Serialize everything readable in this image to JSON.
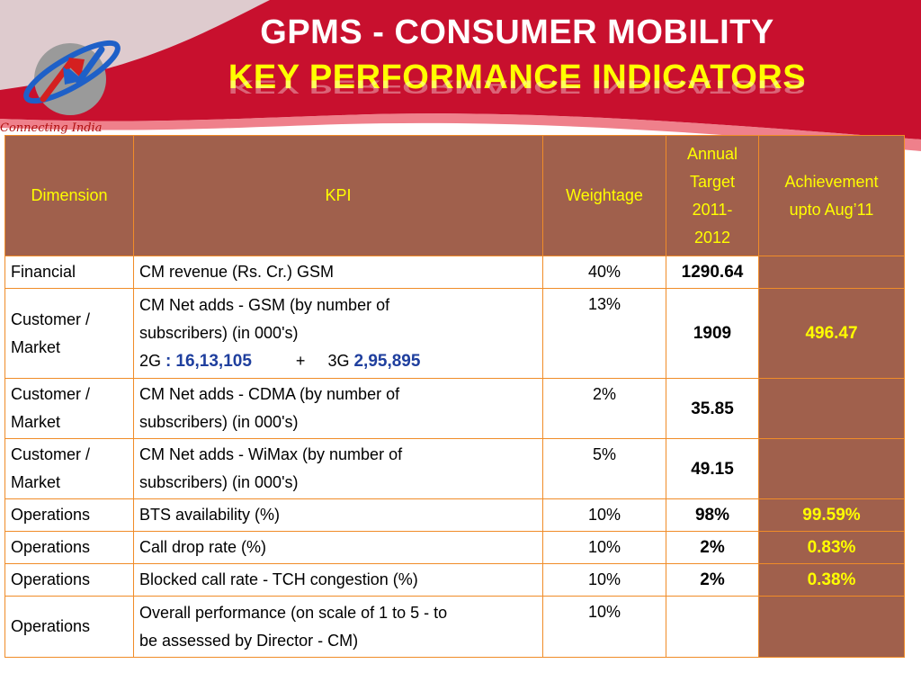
{
  "header": {
    "title_line1": "GPMS  - CONSUMER MOBILITY",
    "title_line2": "KEY PERFORMANCE INDICATORS",
    "tagline": "Connecting India"
  },
  "colors": {
    "header_red": "#c8102e",
    "table_header_bg": "#a0604c",
    "table_header_text": "#ffff00",
    "border": "#f08c28",
    "highlight_blue": "#1f3f9e"
  },
  "table": {
    "headers": {
      "dimension": "Dimension",
      "kpi": "KPI",
      "weightage": "Weightage",
      "annual_target_l1": "Annual",
      "annual_target_l2": "Target",
      "annual_target_l3": "2011-",
      "annual_target_l4": "2012",
      "achievement_l1": "Achievement",
      "achievement_l2": "upto  Aug’11"
    },
    "rows": [
      {
        "dimension": "Financial",
        "kpi_l1": "CM revenue (Rs. Cr.) GSM",
        "weightage": "40%",
        "target": "1290.64",
        "achievement": ""
      },
      {
        "dimension_l1": "Customer /",
        "dimension_l2": "Market",
        "kpi_l1": "CM Net adds - GSM (by number of",
        "kpi_l2": "subscribers) (in 000's)",
        "kpi_2g_label": "2G",
        "kpi_2g_sep": ":",
        "kpi_2g_value": "16,13,105",
        "kpi_plus": "+",
        "kpi_3g_label": "3G",
        "kpi_3g_value": "2,95,895",
        "weightage": "13%",
        "target": "1909",
        "achievement": "496.47"
      },
      {
        "dimension_l1": "Customer /",
        "dimension_l2": "Market",
        "kpi_l1": "CM Net adds - CDMA (by number of",
        "kpi_l2": "subscribers) (in 000's)",
        "weightage": "2%",
        "target": "35.85",
        "achievement": ""
      },
      {
        "dimension_l1": "Customer /",
        "dimension_l2": "Market",
        "kpi_l1": "CM Net adds - WiMax (by number of",
        "kpi_l2": "subscribers) (in 000's)",
        "weightage": "5%",
        "target": "49.15",
        "achievement": ""
      },
      {
        "dimension": "Operations",
        "kpi_l1": "BTS availability (%)",
        "weightage": "10%",
        "target": "98%",
        "achievement": "99.59%"
      },
      {
        "dimension": "Operations",
        "kpi_l1": "Call drop rate (%)",
        "weightage": "10%",
        "target": "2%",
        "achievement": "0.83%"
      },
      {
        "dimension": "Operations",
        "kpi_l1": "Blocked call rate - TCH congestion (%)",
        "weightage": "10%",
        "target": "2%",
        "achievement": "0.38%"
      },
      {
        "dimension": "Operations",
        "kpi_l1": "Overall performance  (on scale of 1 to 5 - to",
        "kpi_l2": "be assessed by Director - CM)",
        "weightage": "10%",
        "target": "",
        "achievement": ""
      }
    ]
  }
}
